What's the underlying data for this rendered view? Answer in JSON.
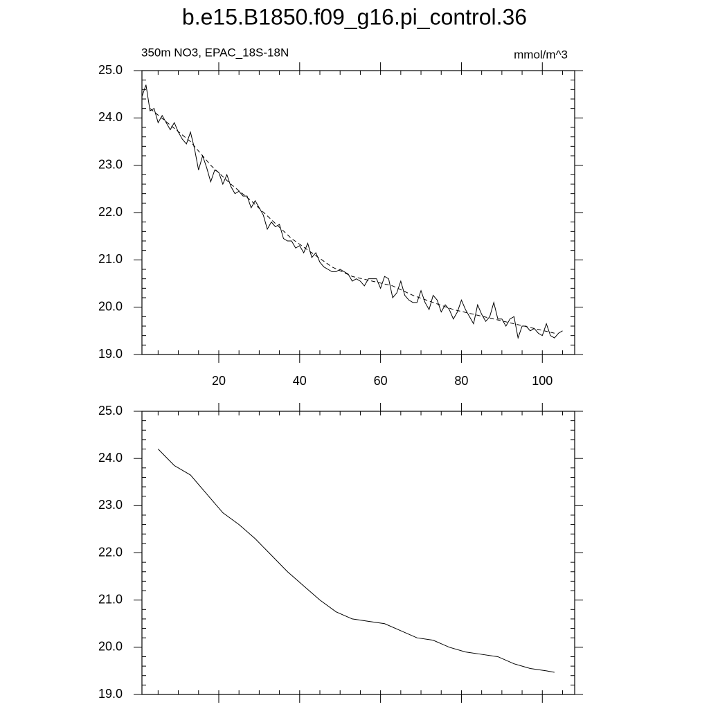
{
  "chart_data": [
    {
      "type": "line",
      "title": "b.e15.B1850.f09_g16.pi_control.36",
      "subtitle": "350m NO3, EPAC_18S-18N",
      "units": "mmol/m^3",
      "xlim": [
        1,
        108
      ],
      "xticks": [
        20,
        40,
        60,
        80,
        100
      ],
      "ylim": [
        19,
        25
      ],
      "yticks": [
        {
          "value": 19,
          "label": "19.0"
        },
        {
          "value": 20,
          "label": "20.0"
        },
        {
          "value": 21,
          "label": "21.0"
        },
        {
          "value": 22,
          "label": "22.0"
        },
        {
          "value": 23,
          "label": "23.0"
        },
        {
          "value": 24,
          "label": "24.0"
        },
        {
          "value": 25,
          "label": "25.0"
        }
      ],
      "series": [
        {
          "color": "#000000",
          "dash": false,
          "x": [
            1,
            2,
            3,
            4,
            5,
            6,
            7,
            8,
            9,
            10,
            11,
            12,
            13,
            14,
            15,
            16,
            17,
            18,
            19,
            20,
            21,
            22,
            23,
            24,
            25,
            26,
            27,
            28,
            29,
            30,
            31,
            32,
            33,
            34,
            35,
            36,
            37,
            38,
            39,
            40,
            41,
            42,
            43,
            44,
            45,
            46,
            47,
            48,
            49,
            50,
            51,
            52,
            53,
            54,
            55,
            56,
            57,
            58,
            59,
            60,
            61,
            62,
            63,
            64,
            65,
            66,
            67,
            68,
            69,
            70,
            71,
            72,
            73,
            74,
            75,
            76,
            77,
            78,
            79,
            80,
            81,
            82,
            83,
            84,
            85,
            86,
            87,
            88,
            89,
            90,
            91,
            92,
            93,
            94,
            95,
            96,
            97,
            98,
            99,
            100,
            101,
            102,
            103,
            104,
            105
          ],
          "values": [
            24.45,
            24.7,
            24.15,
            24.2,
            23.9,
            24.05,
            23.9,
            23.75,
            23.9,
            23.7,
            23.55,
            23.45,
            23.7,
            23.35,
            22.9,
            23.2,
            22.95,
            22.65,
            22.9,
            22.85,
            22.6,
            22.8,
            22.55,
            22.4,
            22.45,
            22.35,
            22.35,
            22.1,
            22.25,
            22.1,
            21.95,
            21.65,
            21.8,
            21.7,
            21.75,
            21.45,
            21.4,
            21.4,
            21.25,
            21.3,
            21.15,
            21.35,
            21.05,
            21.15,
            20.95,
            20.85,
            20.8,
            20.75,
            20.75,
            20.8,
            20.75,
            20.7,
            20.55,
            20.6,
            20.55,
            20.45,
            20.6,
            20.6,
            20.6,
            20.4,
            20.65,
            20.6,
            20.2,
            20.3,
            20.55,
            20.25,
            20.15,
            20.1,
            20.1,
            20.35,
            20.1,
            19.95,
            20.25,
            20.15,
            19.9,
            20.05,
            19.95,
            19.75,
            19.9,
            20.15,
            19.95,
            19.8,
            19.65,
            20.05,
            19.85,
            19.7,
            19.8,
            20.1,
            19.75,
            19.75,
            19.6,
            19.75,
            19.8,
            19.35,
            19.6,
            19.6,
            19.5,
            19.55,
            19.45,
            19.4,
            19.65,
            19.4,
            19.35,
            19.45,
            19.5
          ]
        },
        {
          "color": "#000000",
          "dash": true,
          "x": [
            3,
            8,
            13,
            18,
            23,
            28,
            33,
            38,
            43,
            48,
            53,
            58,
            63,
            68,
            73,
            78,
            83,
            88,
            93,
            98,
            103
          ],
          "values": [
            24.2,
            23.85,
            23.5,
            23.0,
            22.6,
            22.25,
            21.85,
            21.45,
            21.15,
            20.85,
            20.65,
            20.55,
            20.45,
            20.25,
            20.1,
            19.95,
            19.85,
            19.75,
            19.65,
            19.55,
            19.45
          ]
        }
      ]
    },
    {
      "type": "line",
      "xlim": [
        1,
        108
      ],
      "xticks": [
        20,
        40,
        60,
        80,
        100
      ],
      "xtick_labels": false,
      "ylim": [
        19,
        25
      ],
      "yticks": [
        {
          "value": 19,
          "label": "19.0"
        },
        {
          "value": 20,
          "label": "20.0"
        },
        {
          "value": 21,
          "label": "21.0"
        },
        {
          "value": 22,
          "label": "22.0"
        },
        {
          "value": 23,
          "label": "23.0"
        },
        {
          "value": 24,
          "label": "24.0"
        },
        {
          "value": 25,
          "label": "25.0"
        }
      ],
      "series": [
        {
          "color": "#000000",
          "dash": false,
          "x": [
            5,
            9,
            13,
            17,
            21,
            25,
            29,
            33,
            37,
            41,
            45,
            49,
            53,
            57,
            61,
            65,
            69,
            73,
            77,
            81,
            85,
            89,
            93,
            97,
            101,
            103
          ],
          "values": [
            24.2,
            23.85,
            23.65,
            23.25,
            22.85,
            22.6,
            22.3,
            21.95,
            21.6,
            21.3,
            21.0,
            20.75,
            20.6,
            20.55,
            20.5,
            20.35,
            20.2,
            20.15,
            20.0,
            19.9,
            19.85,
            19.8,
            19.65,
            19.55,
            19.5,
            19.47
          ]
        }
      ]
    }
  ]
}
